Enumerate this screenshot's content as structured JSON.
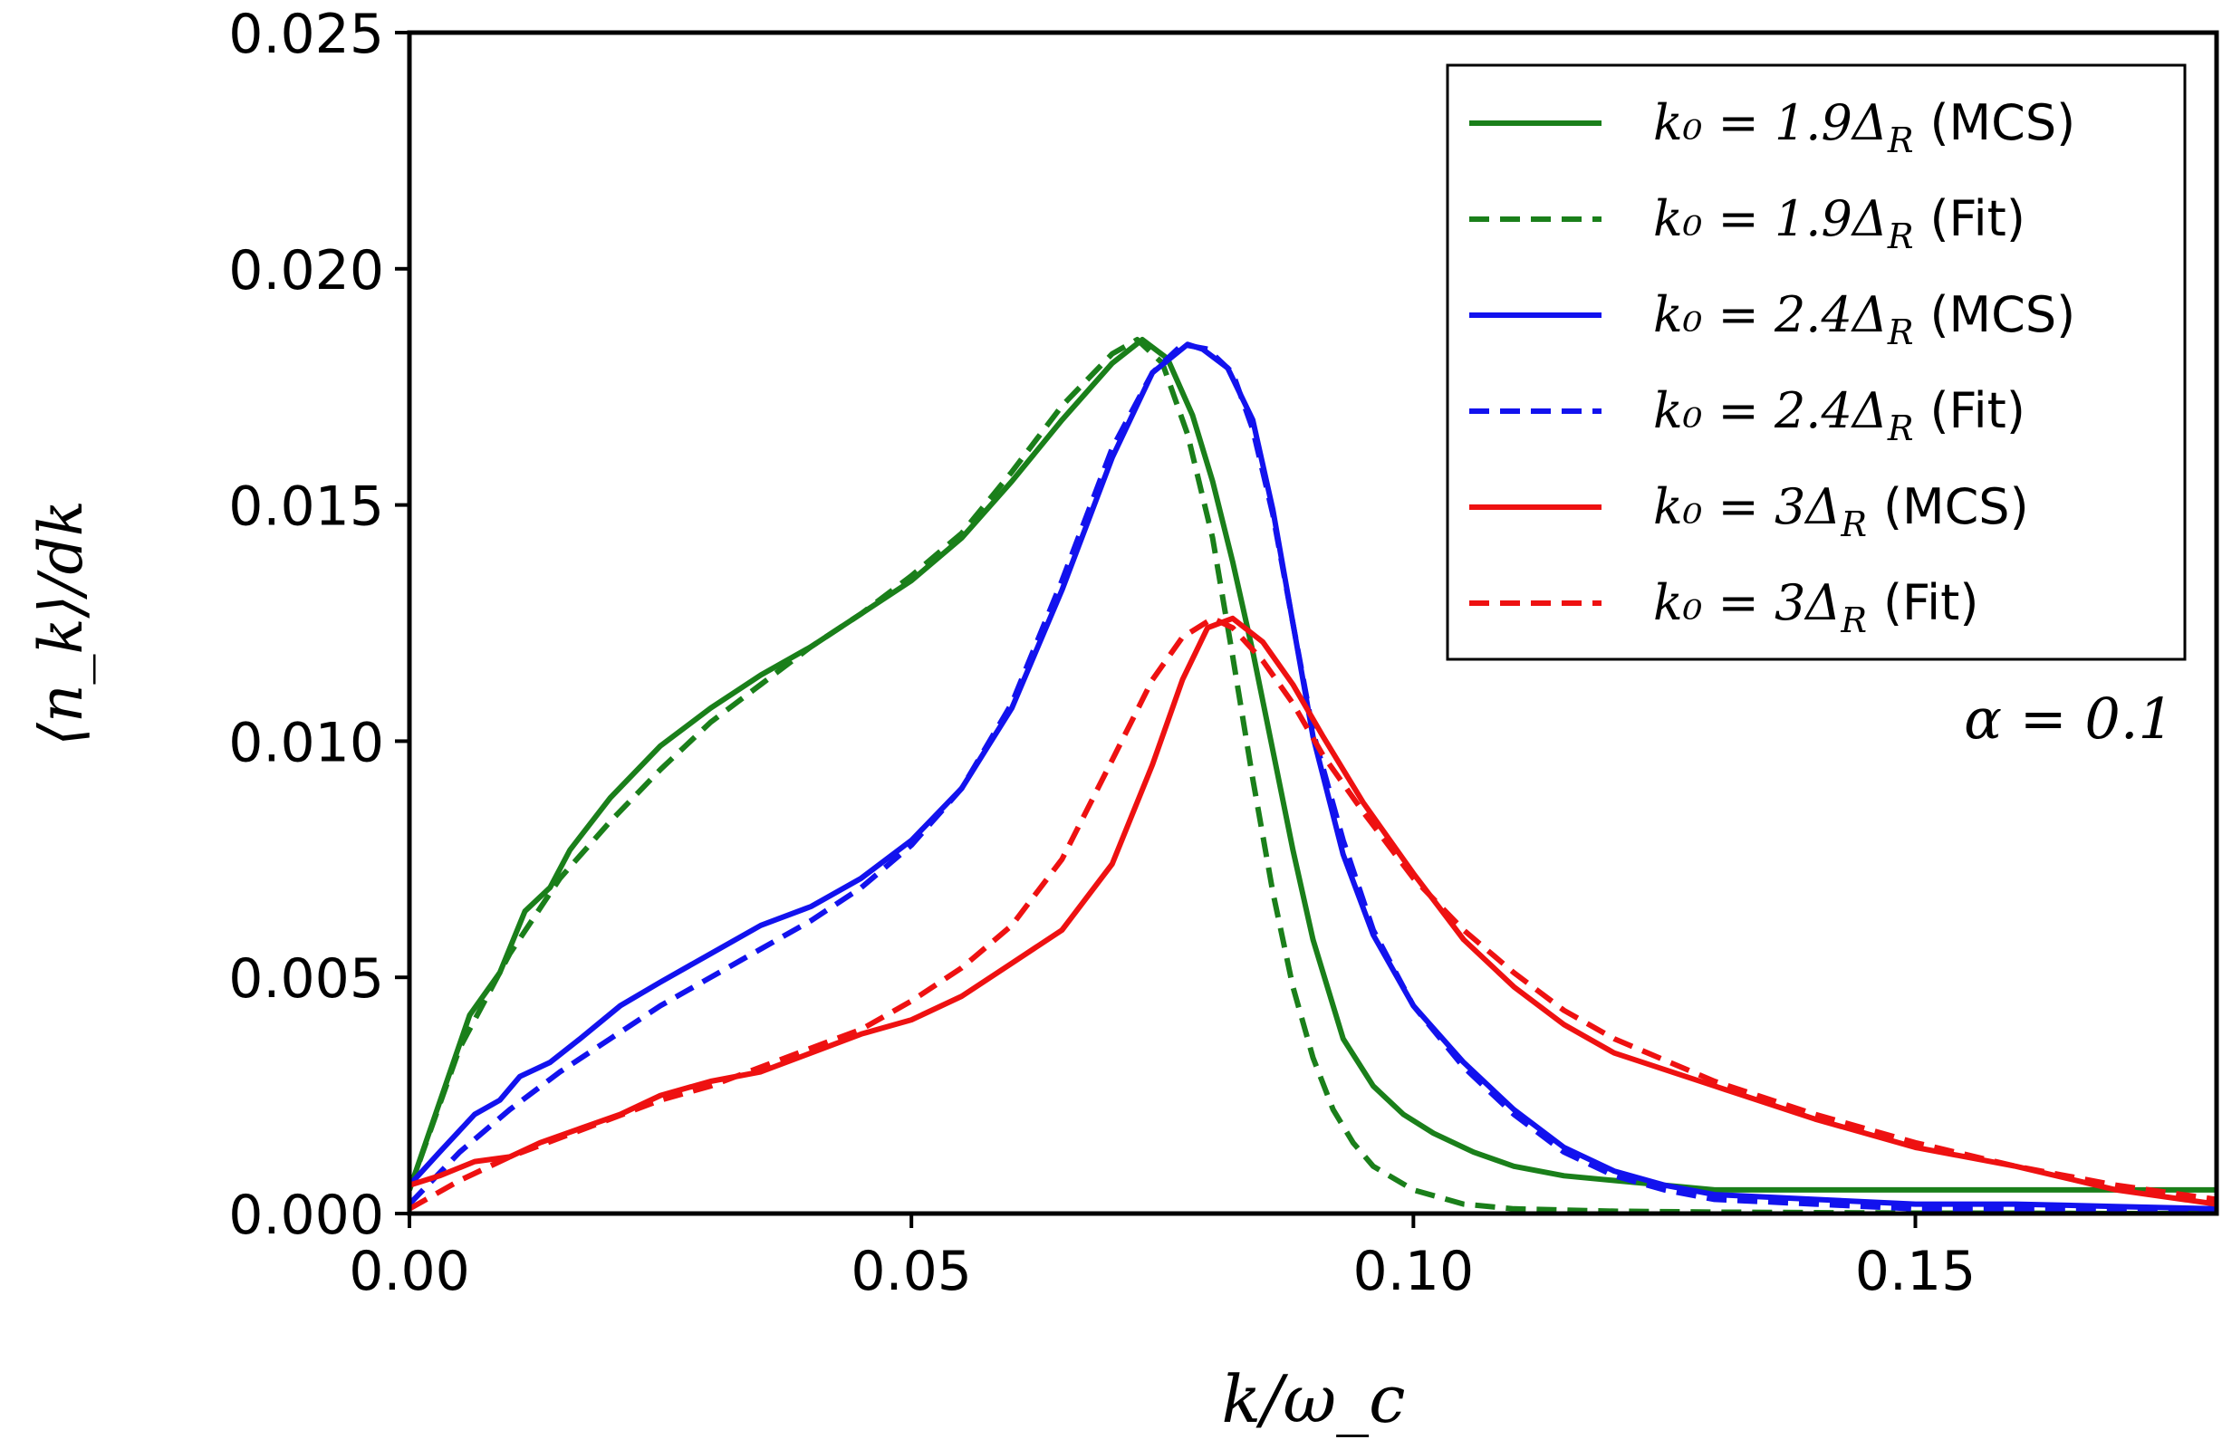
{
  "chart_data": {
    "type": "line",
    "xlabel": "k/ω_c",
    "ylabel": "⟨n_k⟩/dk",
    "xlim": [
      0,
      0.18
    ],
    "ylim": [
      0,
      0.025
    ],
    "xticks": [
      "0.00",
      "0.05",
      "0.10",
      "0.15"
    ],
    "xtick_values": [
      0,
      0.05,
      0.1,
      0.15
    ],
    "yticks": [
      "0.000",
      "0.005",
      "0.010",
      "0.015",
      "0.020",
      "0.025"
    ],
    "ytick_values": [
      0,
      0.005,
      0.01,
      0.015,
      0.02,
      0.025
    ],
    "annotation": "α = 0.1",
    "legend_position": "top-right",
    "series": [
      {
        "name": "k0 = 1.9ΔR (MCS)",
        "label_math": "k₀ = 1.9Δ",
        "label_sub": "R",
        "label_tag": "(MCS)",
        "color": "#1a7f1a",
        "style": "solid",
        "x": [
          0.0,
          0.006,
          0.009,
          0.0115,
          0.014,
          0.016,
          0.02,
          0.025,
          0.03,
          0.035,
          0.04,
          0.045,
          0.05,
          0.055,
          0.06,
          0.065,
          0.07,
          0.073,
          0.0755,
          0.078,
          0.08,
          0.082,
          0.084,
          0.086,
          0.088,
          0.09,
          0.093,
          0.096,
          0.099,
          0.102,
          0.106,
          0.11,
          0.115,
          0.12,
          0.125,
          0.13,
          0.14,
          0.15,
          0.16,
          0.17,
          0.18
        ],
        "y": [
          0.0005,
          0.0042,
          0.0051,
          0.0064,
          0.0069,
          0.0077,
          0.0088,
          0.0099,
          0.0107,
          0.0114,
          0.012,
          0.0127,
          0.0134,
          0.0143,
          0.0155,
          0.0168,
          0.018,
          0.0185,
          0.0181,
          0.0169,
          0.0155,
          0.0138,
          0.0119,
          0.0098,
          0.0077,
          0.0058,
          0.0037,
          0.0027,
          0.0021,
          0.0017,
          0.0013,
          0.001,
          0.0008,
          0.0007,
          0.0006,
          0.0005,
          0.0005,
          0.0005,
          0.0005,
          0.0005,
          0.0005
        ]
      },
      {
        "name": "k0 = 1.9ΔR (Fit)",
        "label_math": "k₀ = 1.9Δ",
        "label_sub": "R",
        "label_tag": "(Fit)",
        "color": "#1a7f1a",
        "style": "dashed",
        "x": [
          0.0,
          0.005,
          0.01,
          0.015,
          0.02,
          0.025,
          0.03,
          0.035,
          0.04,
          0.045,
          0.05,
          0.055,
          0.06,
          0.065,
          0.07,
          0.0725,
          0.075,
          0.0775,
          0.08,
          0.082,
          0.084,
          0.086,
          0.088,
          0.09,
          0.092,
          0.094,
          0.096,
          0.1,
          0.105,
          0.11,
          0.12,
          0.13,
          0.14,
          0.15,
          0.16,
          0.17,
          0.18
        ],
        "y": [
          0.0005,
          0.0035,
          0.0055,
          0.0071,
          0.0083,
          0.0094,
          0.0104,
          0.0112,
          0.012,
          0.0127,
          0.0135,
          0.0144,
          0.0157,
          0.0171,
          0.0182,
          0.0185,
          0.018,
          0.0165,
          0.0143,
          0.0118,
          0.0092,
          0.0068,
          0.0048,
          0.0033,
          0.0022,
          0.0015,
          0.001,
          0.0005,
          0.0002,
          0.0001,
          5e-05,
          3e-05,
          2e-05,
          1e-05,
          1e-05,
          0.0,
          0.0
        ]
      },
      {
        "name": "k0 = 2.4ΔR (MCS)",
        "label_math": "k₀ = 2.4Δ",
        "label_sub": "R",
        "label_tag": "(MCS)",
        "color": "#1212ee",
        "style": "solid",
        "x": [
          0.0,
          0.003,
          0.0065,
          0.009,
          0.011,
          0.014,
          0.017,
          0.021,
          0.025,
          0.03,
          0.035,
          0.04,
          0.045,
          0.05,
          0.055,
          0.06,
          0.065,
          0.07,
          0.074,
          0.0775,
          0.079,
          0.0815,
          0.084,
          0.086,
          0.088,
          0.09,
          0.093,
          0.096,
          0.1,
          0.105,
          0.11,
          0.115,
          0.12,
          0.125,
          0.13,
          0.14,
          0.15,
          0.16,
          0.17,
          0.18
        ],
        "y": [
          0.0006,
          0.0013,
          0.0021,
          0.0024,
          0.0029,
          0.0032,
          0.0037,
          0.0044,
          0.0049,
          0.0055,
          0.0061,
          0.0065,
          0.0071,
          0.0079,
          0.009,
          0.0107,
          0.0132,
          0.016,
          0.0178,
          0.0184,
          0.0183,
          0.0179,
          0.0168,
          0.0149,
          0.0125,
          0.0101,
          0.0076,
          0.0059,
          0.0044,
          0.0032,
          0.0022,
          0.0014,
          0.0009,
          0.0006,
          0.0004,
          0.0003,
          0.0002,
          0.0002,
          0.00015,
          0.0001
        ]
      },
      {
        "name": "k0 = 2.4ΔR (Fit)",
        "label_math": "k₀ = 2.4Δ",
        "label_sub": "R",
        "label_tag": "(Fit)",
        "color": "#1212ee",
        "style": "dashed",
        "x": [
          0.0,
          0.005,
          0.01,
          0.015,
          0.02,
          0.025,
          0.03,
          0.035,
          0.04,
          0.045,
          0.05,
          0.055,
          0.06,
          0.065,
          0.07,
          0.074,
          0.077,
          0.0795,
          0.082,
          0.084,
          0.086,
          0.088,
          0.09,
          0.093,
          0.096,
          0.1,
          0.105,
          0.11,
          0.115,
          0.12,
          0.125,
          0.13,
          0.14,
          0.15,
          0.16,
          0.17,
          0.18
        ],
        "y": [
          0.0002,
          0.0013,
          0.0022,
          0.003,
          0.0037,
          0.0044,
          0.005,
          0.0056,
          0.0062,
          0.0069,
          0.0078,
          0.009,
          0.0108,
          0.0134,
          0.0162,
          0.0178,
          0.0184,
          0.0183,
          0.0178,
          0.0166,
          0.0148,
          0.0125,
          0.0102,
          0.0079,
          0.006,
          0.0044,
          0.0031,
          0.0021,
          0.0013,
          0.0008,
          0.0005,
          0.0003,
          0.0002,
          0.0001,
          0.0001,
          0.0001,
          0.0001
        ]
      },
      {
        "name": "k0 = 3ΔR (MCS)",
        "label_math": "k₀ = 3Δ",
        "label_sub": "R",
        "label_tag": "(MCS)",
        "color": "#ee1111",
        "style": "solid",
        "x": [
          0.0,
          0.003,
          0.0065,
          0.01,
          0.013,
          0.017,
          0.021,
          0.025,
          0.03,
          0.035,
          0.04,
          0.045,
          0.05,
          0.055,
          0.06,
          0.065,
          0.07,
          0.074,
          0.077,
          0.0795,
          0.082,
          0.085,
          0.088,
          0.091,
          0.095,
          0.1,
          0.105,
          0.11,
          0.115,
          0.12,
          0.13,
          0.14,
          0.15,
          0.16,
          0.17,
          0.18
        ],
        "y": [
          0.0006,
          0.0008,
          0.0011,
          0.0012,
          0.0015,
          0.0018,
          0.0021,
          0.0025,
          0.0028,
          0.003,
          0.0034,
          0.0038,
          0.0041,
          0.0046,
          0.0053,
          0.006,
          0.0074,
          0.0095,
          0.0113,
          0.0124,
          0.0126,
          0.0121,
          0.0112,
          0.0101,
          0.0087,
          0.0072,
          0.0058,
          0.0048,
          0.004,
          0.0034,
          0.0027,
          0.002,
          0.0014,
          0.001,
          0.0005,
          0.0002
        ]
      },
      {
        "name": "k0 = 3ΔR (Fit)",
        "label_math": "k₀ = 3Δ",
        "label_sub": "R",
        "label_tag": "(Fit)",
        "color": "#ee1111",
        "style": "dashed",
        "x": [
          0.0,
          0.005,
          0.01,
          0.015,
          0.02,
          0.025,
          0.03,
          0.035,
          0.04,
          0.045,
          0.05,
          0.055,
          0.06,
          0.065,
          0.07,
          0.074,
          0.077,
          0.08,
          0.082,
          0.085,
          0.088,
          0.091,
          0.095,
          0.1,
          0.105,
          0.11,
          0.115,
          0.12,
          0.13,
          0.14,
          0.15,
          0.16,
          0.17,
          0.18
        ],
        "y": [
          0.0001,
          0.0007,
          0.0012,
          0.0016,
          0.002,
          0.0024,
          0.0027,
          0.0031,
          0.0035,
          0.0039,
          0.0045,
          0.0052,
          0.0061,
          0.0075,
          0.0096,
          0.0113,
          0.0122,
          0.0126,
          0.0124,
          0.0117,
          0.0108,
          0.0097,
          0.0085,
          0.0071,
          0.006,
          0.0051,
          0.0043,
          0.0037,
          0.0028,
          0.0021,
          0.0015,
          0.001,
          0.0006,
          0.0003
        ]
      }
    ]
  }
}
